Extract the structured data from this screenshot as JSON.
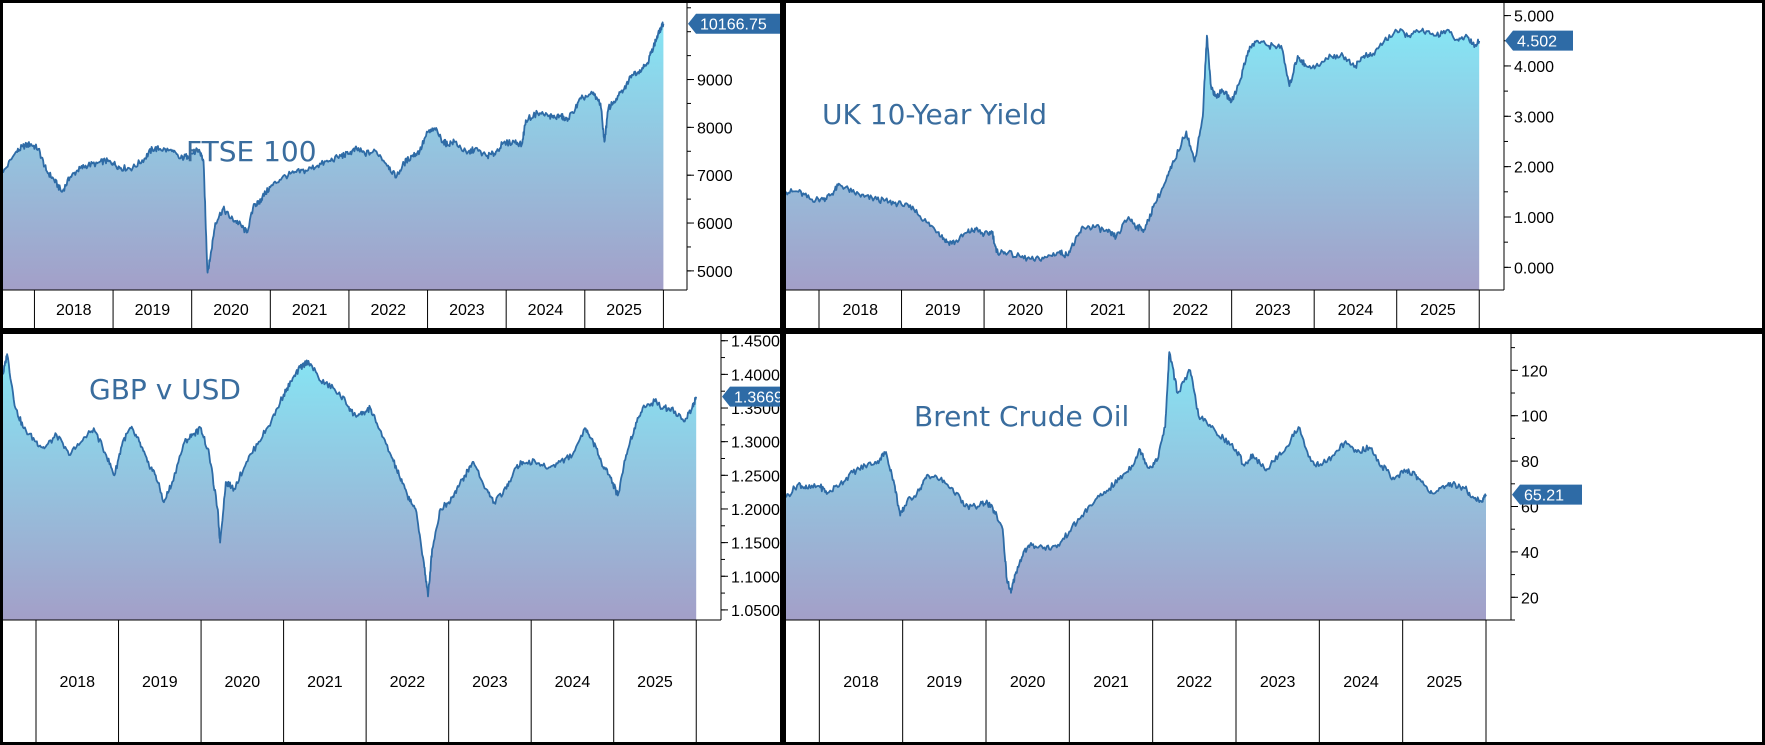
{
  "chart_data": [
    {
      "type": "area",
      "title": "FTSE 100",
      "x_categories": [
        "2018",
        "2019",
        "2020",
        "2021",
        "2022",
        "2023",
        "2024",
        "2025"
      ],
      "xlim": [
        2017.6,
        2026.3
      ],
      "ylim": [
        4600,
        10600
      ],
      "y_ticks": [
        "5000",
        "6000",
        "7000",
        "8000",
        "9000"
      ],
      "y_tick_values": [
        5000,
        6000,
        7000,
        8000,
        9000
      ],
      "last_value_label": "10166.75",
      "last_value": 10166.75,
      "series": [
        {
          "x": [
            2017.6,
            2017.75,
            2017.85,
            2017.95,
            2018.05,
            2018.15,
            2018.25,
            2018.35,
            2018.45,
            2018.55,
            2018.65,
            2018.8,
            2018.9,
            2019.0,
            2019.1,
            2019.25,
            2019.4,
            2019.5,
            2019.6,
            2019.75,
            2019.85,
            2019.95,
            2020.05,
            2020.1,
            2020.15,
            2020.2,
            2020.23,
            2020.3,
            2020.4,
            2020.5,
            2020.6,
            2020.7,
            2020.8,
            2020.85,
            2020.9,
            2021.0,
            2021.15,
            2021.3,
            2021.45,
            2021.6,
            2021.75,
            2021.9,
            2022.0,
            2022.1,
            2022.2,
            2022.35,
            2022.5,
            2022.6,
            2022.7,
            2022.8,
            2022.9,
            2023.0,
            2023.1,
            2023.2,
            2023.25,
            2023.35,
            2023.5,
            2023.6,
            2023.75,
            2023.85,
            2023.95,
            2024.1,
            2024.2,
            2024.25,
            2024.4,
            2024.55,
            2024.6,
            2024.7,
            2024.75,
            2024.85,
            2024.95,
            2025.1,
            2025.2,
            2025.25,
            2025.3,
            2025.4,
            2025.5,
            2025.6,
            2025.7,
            2025.8,
            2025.85,
            2025.9,
            2025.95,
            2026.0
          ],
          "y": [
            7050,
            7450,
            7600,
            7650,
            7550,
            7100,
            6900,
            6650,
            6950,
            7100,
            7200,
            7250,
            7300,
            7250,
            7150,
            7150,
            7350,
            7550,
            7550,
            7500,
            7350,
            7400,
            7500,
            7500,
            7300,
            5000,
            5200,
            6000,
            6300,
            6100,
            6000,
            5800,
            6400,
            6400,
            6550,
            6750,
            6950,
            7050,
            7100,
            7200,
            7300,
            7400,
            7450,
            7550,
            7450,
            7500,
            7200,
            6950,
            7250,
            7400,
            7500,
            7900,
            7950,
            7700,
            7650,
            7700,
            7450,
            7550,
            7400,
            7450,
            7650,
            7700,
            7650,
            8150,
            8300,
            8250,
            8200,
            8250,
            8150,
            8300,
            8600,
            8700,
            8500,
            7700,
            8400,
            8600,
            8800,
            9100,
            9200,
            9350,
            9600,
            9800,
            10000,
            10166.75
          ]
        }
      ]
    },
    {
      "type": "area",
      "title": "UK 10-Year Yield",
      "x_categories": [
        "2018",
        "2019",
        "2020",
        "2021",
        "2022",
        "2023",
        "2024",
        "2025"
      ],
      "xlim": [
        2017.6,
        2026.3
      ],
      "ylim": [
        -0.45,
        5.25
      ],
      "y_ticks": [
        "0.000",
        "1.000",
        "2.000",
        "3.000",
        "4.000",
        "5.000"
      ],
      "y_tick_values": [
        0,
        1,
        2,
        3,
        4,
        5
      ],
      "last_value_label": "4.502",
      "last_value": 4.502,
      "series": [
        {
          "x": [
            2017.6,
            2017.75,
            2017.9,
            2018.05,
            2018.15,
            2018.25,
            2018.4,
            2018.55,
            2018.7,
            2018.85,
            2019.0,
            2019.15,
            2019.3,
            2019.45,
            2019.55,
            2019.65,
            2019.8,
            2019.9,
            2020.0,
            2020.1,
            2020.15,
            2020.25,
            2020.45,
            2020.6,
            2020.75,
            2020.9,
            2021.0,
            2021.1,
            2021.2,
            2021.35,
            2021.5,
            2021.6,
            2021.75,
            2021.85,
            2021.95,
            2022.05,
            2022.2,
            2022.3,
            2022.45,
            2022.55,
            2022.65,
            2022.7,
            2022.75,
            2022.8,
            2022.9,
            2023.0,
            2023.1,
            2023.2,
            2023.3,
            2023.45,
            2023.6,
            2023.7,
            2023.8,
            2023.9,
            2024.05,
            2024.2,
            2024.35,
            2024.5,
            2024.6,
            2024.7,
            2024.85,
            2025.0,
            2025.15,
            2025.3,
            2025.45,
            2025.6,
            2025.75,
            2025.85,
            2025.95,
            2026.0
          ],
          "y": [
            1.5,
            1.5,
            1.35,
            1.35,
            1.45,
            1.65,
            1.5,
            1.4,
            1.35,
            1.3,
            1.25,
            1.15,
            0.9,
            0.7,
            0.5,
            0.5,
            0.7,
            0.75,
            0.65,
            0.7,
            0.3,
            0.3,
            0.2,
            0.15,
            0.2,
            0.3,
            0.25,
            0.5,
            0.8,
            0.8,
            0.7,
            0.6,
            1.0,
            0.8,
            0.75,
            1.2,
            1.7,
            2.1,
            2.7,
            2.1,
            3.0,
            4.6,
            3.6,
            3.4,
            3.5,
            3.3,
            3.7,
            4.3,
            4.5,
            4.4,
            4.4,
            3.6,
            4.2,
            4.0,
            4.0,
            4.2,
            4.2,
            4.0,
            4.2,
            4.2,
            4.5,
            4.7,
            4.6,
            4.7,
            4.6,
            4.7,
            4.5,
            4.6,
            4.4,
            4.5
          ]
        }
      ]
    },
    {
      "type": "area",
      "title": "GBP v USD",
      "x_categories": [
        "2018",
        "2019",
        "2020",
        "2021",
        "2022",
        "2023",
        "2024",
        "2025"
      ],
      "xlim": [
        2017.6,
        2026.3
      ],
      "ylim": [
        1.035,
        1.46
      ],
      "y_ticks": [
        "1.0500",
        "1.1000",
        "1.1500",
        "1.2000",
        "1.2500",
        "1.3000",
        "1.3500",
        "1.4000",
        "1.4500"
      ],
      "y_tick_values": [
        1.05,
        1.1,
        1.15,
        1.2,
        1.25,
        1.3,
        1.35,
        1.4,
        1.45
      ],
      "last_value_label": "1.3669",
      "last_value": 1.3669,
      "series": [
        {
          "x": [
            2017.6,
            2017.65,
            2017.75,
            2017.85,
            2018.0,
            2018.1,
            2018.25,
            2018.4,
            2018.55,
            2018.7,
            2018.85,
            2018.95,
            2019.05,
            2019.15,
            2019.25,
            2019.35,
            2019.45,
            2019.55,
            2019.65,
            2019.8,
            2019.9,
            2020.0,
            2020.1,
            2020.2,
            2020.23,
            2020.3,
            2020.4,
            2020.55,
            2020.7,
            2020.85,
            2021.0,
            2021.1,
            2021.2,
            2021.3,
            2021.45,
            2021.6,
            2021.75,
            2021.85,
            2021.95,
            2022.05,
            2022.15,
            2022.3,
            2022.4,
            2022.5,
            2022.6,
            2022.7,
            2022.75,
            2022.8,
            2022.9,
            2023.0,
            2023.1,
            2023.2,
            2023.3,
            2023.45,
            2023.55,
            2023.7,
            2023.8,
            2023.9,
            2024.05,
            2024.2,
            2024.35,
            2024.5,
            2024.65,
            2024.75,
            2024.85,
            2024.95,
            2025.05,
            2025.15,
            2025.25,
            2025.35,
            2025.5,
            2025.6,
            2025.7,
            2025.85,
            2025.95,
            2026.0
          ],
          "y": [
            1.4,
            1.43,
            1.35,
            1.32,
            1.3,
            1.29,
            1.31,
            1.28,
            1.3,
            1.32,
            1.28,
            1.25,
            1.3,
            1.32,
            1.3,
            1.27,
            1.25,
            1.21,
            1.24,
            1.3,
            1.31,
            1.32,
            1.28,
            1.2,
            1.15,
            1.24,
            1.23,
            1.27,
            1.3,
            1.33,
            1.37,
            1.39,
            1.41,
            1.42,
            1.39,
            1.38,
            1.36,
            1.34,
            1.34,
            1.35,
            1.32,
            1.28,
            1.25,
            1.22,
            1.2,
            1.12,
            1.07,
            1.14,
            1.2,
            1.21,
            1.23,
            1.25,
            1.27,
            1.23,
            1.21,
            1.23,
            1.26,
            1.27,
            1.27,
            1.26,
            1.27,
            1.28,
            1.32,
            1.3,
            1.27,
            1.25,
            1.22,
            1.28,
            1.32,
            1.35,
            1.36,
            1.35,
            1.35,
            1.33,
            1.35,
            1.3669
          ]
        }
      ]
    },
    {
      "type": "area",
      "title": "Brent Crude Oil",
      "x_categories": [
        "2018",
        "2019",
        "2020",
        "2021",
        "2022",
        "2023",
        "2024",
        "2025"
      ],
      "xlim": [
        2017.6,
        2026.3
      ],
      "ylim": [
        10,
        136
      ],
      "y_ticks": [
        "20",
        "40",
        "60",
        "80",
        "100",
        "120"
      ],
      "y_tick_values": [
        20,
        40,
        60,
        80,
        100,
        120
      ],
      "last_value_label": "65.21",
      "last_value": 65.21,
      "series": [
        {
          "x": [
            2017.6,
            2017.75,
            2017.85,
            2018.0,
            2018.1,
            2018.25,
            2018.4,
            2018.55,
            2018.7,
            2018.8,
            2018.9,
            2018.97,
            2019.05,
            2019.2,
            2019.3,
            2019.45,
            2019.6,
            2019.75,
            2019.9,
            2020.0,
            2020.1,
            2020.2,
            2020.25,
            2020.3,
            2020.35,
            2020.45,
            2020.55,
            2020.7,
            2020.85,
            2021.0,
            2021.15,
            2021.3,
            2021.45,
            2021.6,
            2021.75,
            2021.85,
            2021.95,
            2022.05,
            2022.15,
            2022.2,
            2022.3,
            2022.45,
            2022.55,
            2022.7,
            2022.85,
            2023.0,
            2023.1,
            2023.2,
            2023.35,
            2023.45,
            2023.6,
            2023.75,
            2023.9,
            2024.0,
            2024.15,
            2024.3,
            2024.45,
            2024.6,
            2024.75,
            2024.9,
            2025.05,
            2025.15,
            2025.25,
            2025.35,
            2025.5,
            2025.6,
            2025.75,
            2025.85,
            2025.95,
            2026.0
          ],
          "y": [
            64,
            70,
            68,
            69,
            66,
            70,
            75,
            78,
            80,
            84,
            70,
            56,
            62,
            67,
            74,
            72,
            68,
            60,
            60,
            62,
            58,
            50,
            28,
            22,
            30,
            40,
            43,
            42,
            42,
            49,
            56,
            62,
            67,
            72,
            78,
            85,
            77,
            80,
            95,
            128,
            110,
            120,
            100,
            95,
            90,
            85,
            78,
            83,
            76,
            80,
            86,
            95,
            80,
            78,
            82,
            88,
            84,
            86,
            78,
            72,
            76,
            74,
            70,
            66,
            68,
            70,
            68,
            64,
            62,
            65.21
          ]
        }
      ]
    }
  ],
  "colors": {
    "line": "#2e6ba6",
    "title": "#3a6d9e",
    "label_bg": "#2e6ba6",
    "area_top": "#86e5f4",
    "area_bottom": "#a39fc8"
  }
}
